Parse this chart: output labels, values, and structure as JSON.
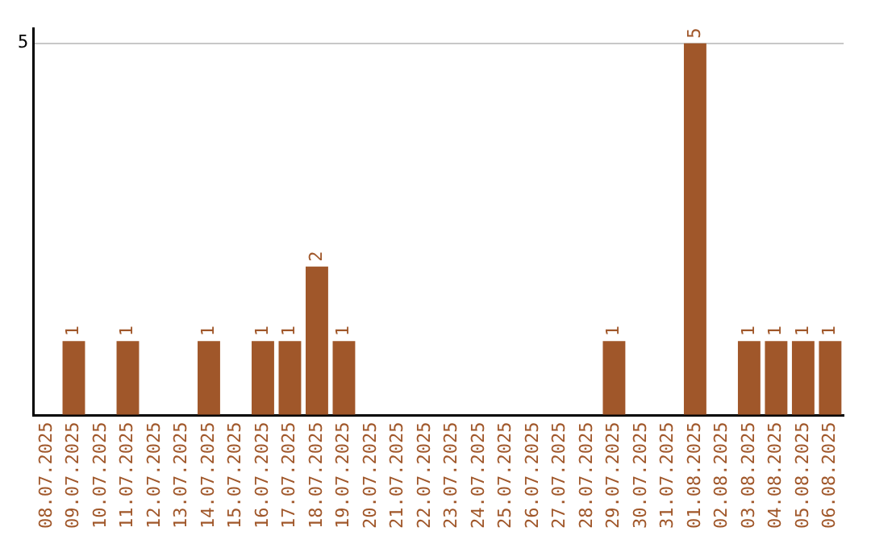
{
  "chart_data": {
    "type": "bar",
    "categories": [
      "08.07.2025",
      "09.07.2025",
      "10.07.2025",
      "11.07.2025",
      "12.07.2025",
      "13.07.2025",
      "14.07.2025",
      "15.07.2025",
      "16.07.2025",
      "17.07.2025",
      "18.07.2025",
      "19.07.2025",
      "20.07.2025",
      "21.07.2025",
      "22.07.2025",
      "23.07.2025",
      "24.07.2025",
      "25.07.2025",
      "26.07.2025",
      "27.07.2025",
      "28.07.2025",
      "29.07.2025",
      "30.07.2025",
      "31.07.2025",
      "01.08.2025",
      "02.08.2025",
      "03.08.2025",
      "04.08.2025",
      "05.08.2025",
      "06.08.2025"
    ],
    "values": [
      0,
      1,
      0,
      1,
      0,
      0,
      1,
      0,
      1,
      1,
      2,
      1,
      0,
      0,
      0,
      0,
      0,
      0,
      0,
      0,
      0,
      1,
      0,
      0,
      5,
      0,
      1,
      1,
      1,
      1
    ],
    "value_labels": [
      null,
      "1",
      null,
      "1",
      null,
      null,
      "1",
      null,
      "1",
      "1",
      "2",
      "1",
      null,
      null,
      null,
      null,
      null,
      null,
      null,
      null,
      null,
      "1",
      null,
      null,
      "5",
      null,
      "1",
      "1",
      "1",
      "1"
    ],
    "color": "#a0572a",
    "ylim": [
      0,
      5.2
    ],
    "yticks": [
      {
        "value": 0,
        "label": null
      },
      5
    ],
    "grid": "y",
    "legend": false
  }
}
